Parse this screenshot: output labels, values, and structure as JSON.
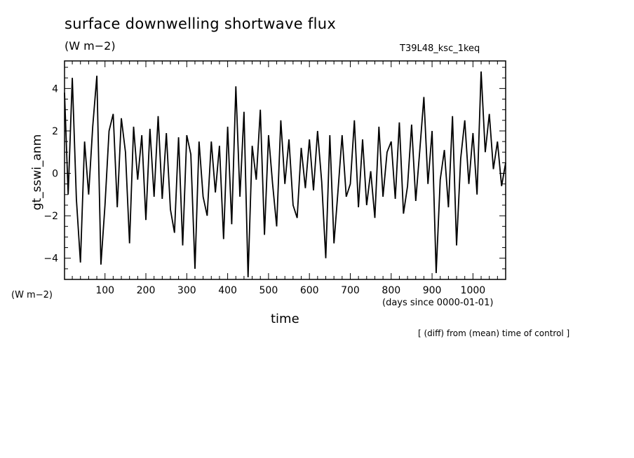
{
  "header": {
    "title": "surface downwelling shortwave flux",
    "units": "(W m−2)",
    "run_label": "T39L48_ksc_1keq"
  },
  "axes": {
    "left_units": "(W m−2)",
    "x_units": "(days since 0000-01-01)",
    "note": "[ (diff) from (mean) time of control ]"
  },
  "chart_data": {
    "type": "line",
    "title": "surface downwelling shortwave flux",
    "xlabel": "time",
    "ylabel": "gt_sswi_anm",
    "xlim": [
      1,
      1080
    ],
    "ylim": [
      -5,
      5.3
    ],
    "xticks": [
      100,
      200,
      300,
      400,
      500,
      600,
      700,
      800,
      900,
      1000
    ],
    "yticks": [
      -4,
      -2,
      0,
      2,
      4
    ],
    "ytick_labels": [
      "−4",
      "−2",
      "0",
      "2",
      "4"
    ],
    "grid": false,
    "line_color": "#000000",
    "series": [
      {
        "x": [
          1,
          10,
          20,
          30,
          40,
          50,
          60,
          70,
          80,
          90,
          100,
          110,
          120,
          130,
          140,
          150,
          160,
          170,
          180,
          190,
          200,
          210,
          220,
          230,
          240,
          250,
          260,
          270,
          280,
          290,
          300,
          310,
          320,
          330,
          340,
          350,
          360,
          370,
          380,
          390,
          400,
          410,
          420,
          430,
          440,
          450,
          460,
          470,
          480,
          490,
          500,
          510,
          520,
          530,
          540,
          550,
          560,
          570,
          580,
          590,
          600,
          610,
          620,
          630,
          640,
          650,
          660,
          670,
          680,
          690,
          700,
          710,
          720,
          730,
          740,
          750,
          760,
          770,
          780,
          790,
          800,
          810,
          820,
          830,
          840,
          850,
          860,
          870,
          880,
          890,
          900,
          910,
          920,
          930,
          940,
          950,
          960,
          970,
          980,
          990,
          1000,
          1010,
          1020,
          1030,
          1040,
          1050,
          1060,
          1070,
          1080
        ],
        "y": [
          3.8,
          -1.0,
          4.5,
          -1.2,
          -4.2,
          1.5,
          -1.0,
          2.2,
          4.6,
          -4.3,
          -1.5,
          2.0,
          2.8,
          -1.6,
          2.6,
          1.0,
          -3.3,
          2.2,
          -0.3,
          1.8,
          -2.2,
          2.1,
          -1.1,
          2.7,
          -1.2,
          1.9,
          -1.7,
          -2.8,
          1.7,
          -3.4,
          1.8,
          0.9,
          -4.5,
          1.5,
          -1.1,
          -2.0,
          1.5,
          -0.9,
          1.3,
          -3.1,
          2.2,
          -2.4,
          4.1,
          -1.1,
          2.9,
          -4.9,
          1.3,
          -0.3,
          3.0,
          -2.9,
          1.8,
          -0.5,
          -2.5,
          2.5,
          -0.5,
          1.6,
          -1.5,
          -2.1,
          1.2,
          -0.7,
          1.6,
          -0.8,
          2.0,
          -0.4,
          -4.0,
          1.8,
          -3.3,
          -0.8,
          1.8,
          -1.1,
          -0.5,
          2.5,
          -1.6,
          1.6,
          -1.5,
          0.1,
          -2.1,
          2.2,
          -1.1,
          1.0,
          1.5,
          -1.2,
          2.4,
          -1.9,
          -0.6,
          2.3,
          -1.3,
          1.1,
          3.6,
          -0.5,
          2.0,
          -4.7,
          -0.3,
          1.1,
          -1.6,
          2.7,
          -3.4,
          0.7,
          2.5,
          -0.5,
          1.9,
          -1.0,
          4.8,
          1.0,
          2.8,
          0.2,
          1.5,
          -0.6,
          0.5
        ],
        "style": "solid"
      }
    ]
  }
}
